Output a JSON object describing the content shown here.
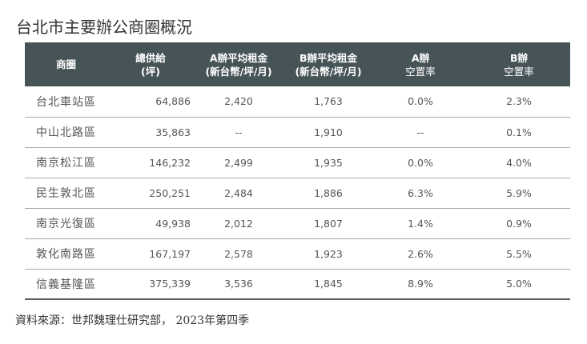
{
  "title": "台北市主要辦公商圈概況",
  "table": {
    "headers": [
      {
        "line1": "商圈",
        "line2": ""
      },
      {
        "line1": "總供給",
        "line2": "(坪)"
      },
      {
        "line1": "A辦平均租金",
        "line2": "(新台幣/坪/月)"
      },
      {
        "line1": "B辦平均租金",
        "line2": "(新台幣/坪/月)"
      },
      {
        "line1": "A辦",
        "line2": "空置率"
      },
      {
        "line1": "B辦",
        "line2": "空置率"
      }
    ],
    "rows": [
      {
        "district": "台北車站區",
        "supply": "64,886",
        "a_rent": "2,420",
        "b_rent": "1,763",
        "a_vacancy": "0.0%",
        "b_vacancy": "2.3%"
      },
      {
        "district": "中山北路區",
        "supply": "35,863",
        "a_rent": "--",
        "b_rent": "1,910",
        "a_vacancy": "--",
        "b_vacancy": "0.1%"
      },
      {
        "district": "南京松江區",
        "supply": "146,232",
        "a_rent": "2,499",
        "b_rent": "1,935",
        "a_vacancy": "0.0%",
        "b_vacancy": "4.0%"
      },
      {
        "district": "民生敦北區",
        "supply": "250,251",
        "a_rent": "2,484",
        "b_rent": "1,886",
        "a_vacancy": "6.3%",
        "b_vacancy": "5.9%"
      },
      {
        "district": "南京光復區",
        "supply": "49,938",
        "a_rent": "2,012",
        "b_rent": "1,807",
        "a_vacancy": "1.4%",
        "b_vacancy": "0.9%"
      },
      {
        "district": "敦化南路區",
        "supply": "167,197",
        "a_rent": "2,578",
        "b_rent": "1,923",
        "a_vacancy": "2.6%",
        "b_vacancy": "5.5%"
      },
      {
        "district": "信義基隆區",
        "supply": "375,339",
        "a_rent": "3,536",
        "b_rent": "1,845",
        "a_vacancy": "8.9%",
        "b_vacancy": "5.0%"
      }
    ]
  },
  "source": "資料來源：世邦魏理仕研究部， 2023年第四季",
  "colors": {
    "header_bg": "#465357",
    "header_text": "#ffffff",
    "row_divider": "#a9a9a9"
  }
}
